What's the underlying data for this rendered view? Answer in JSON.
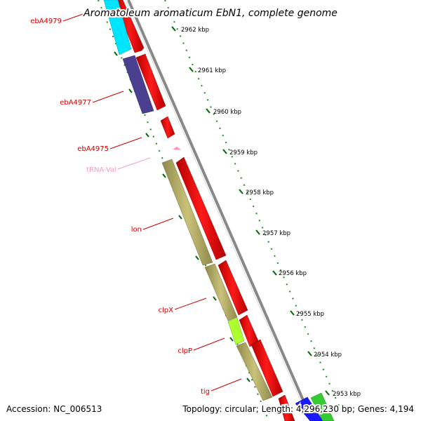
{
  "title": "Aromatoleum aromaticum EbN1, complete genome",
  "accession": "Accession: NC_006513",
  "summary": "Topology: circular; Length: 4,296,230 bp; Genes: 4,194",
  "scale": {
    "ticks": [
      {
        "pos": 2962,
        "label": "2962 kbp"
      },
      {
        "pos": 2961,
        "label": "2961 kbp"
      },
      {
        "pos": 2960,
        "label": "2960 kbp"
      },
      {
        "pos": 2959,
        "label": "2959 kbp"
      },
      {
        "pos": 2958,
        "label": "2958 kbp"
      },
      {
        "pos": 2957,
        "label": "2957 kbp"
      },
      {
        "pos": 2956,
        "label": "2956 kbp"
      },
      {
        "pos": 2955,
        "label": "2955 kbp"
      },
      {
        "pos": 2954,
        "label": "2954 kbp"
      },
      {
        "pos": 2953,
        "label": "2953 kbp"
      }
    ]
  },
  "gene_labels": [
    {
      "text": "ebA4979",
      "color": "#cc0000"
    },
    {
      "text": "ebA4977",
      "color": "#cc0000"
    },
    {
      "text": "ebA4975",
      "color": "#cc0000"
    },
    {
      "text": "tRNA-Val",
      "color": "#f4a0c0"
    },
    {
      "text": "lon",
      "color": "#cc0000"
    },
    {
      "text": "clpX",
      "color": "#cc0000"
    },
    {
      "text": "clpP",
      "color": "#cc0000"
    },
    {
      "text": "tig",
      "color": "#cc0000"
    }
  ],
  "colors": {
    "gene_red": "#ff0000",
    "cog_cyan": "#00e5ff",
    "cog_purple": "#4b3f8f",
    "cog_khaki": "#bdb76b",
    "cog_lime": "#adff2f",
    "cog_blue": "#1a1aff",
    "cog_green": "#33cc33",
    "trna_pink": "#ff8fc0",
    "backbone": "#888888",
    "tick_green": "#006600"
  }
}
